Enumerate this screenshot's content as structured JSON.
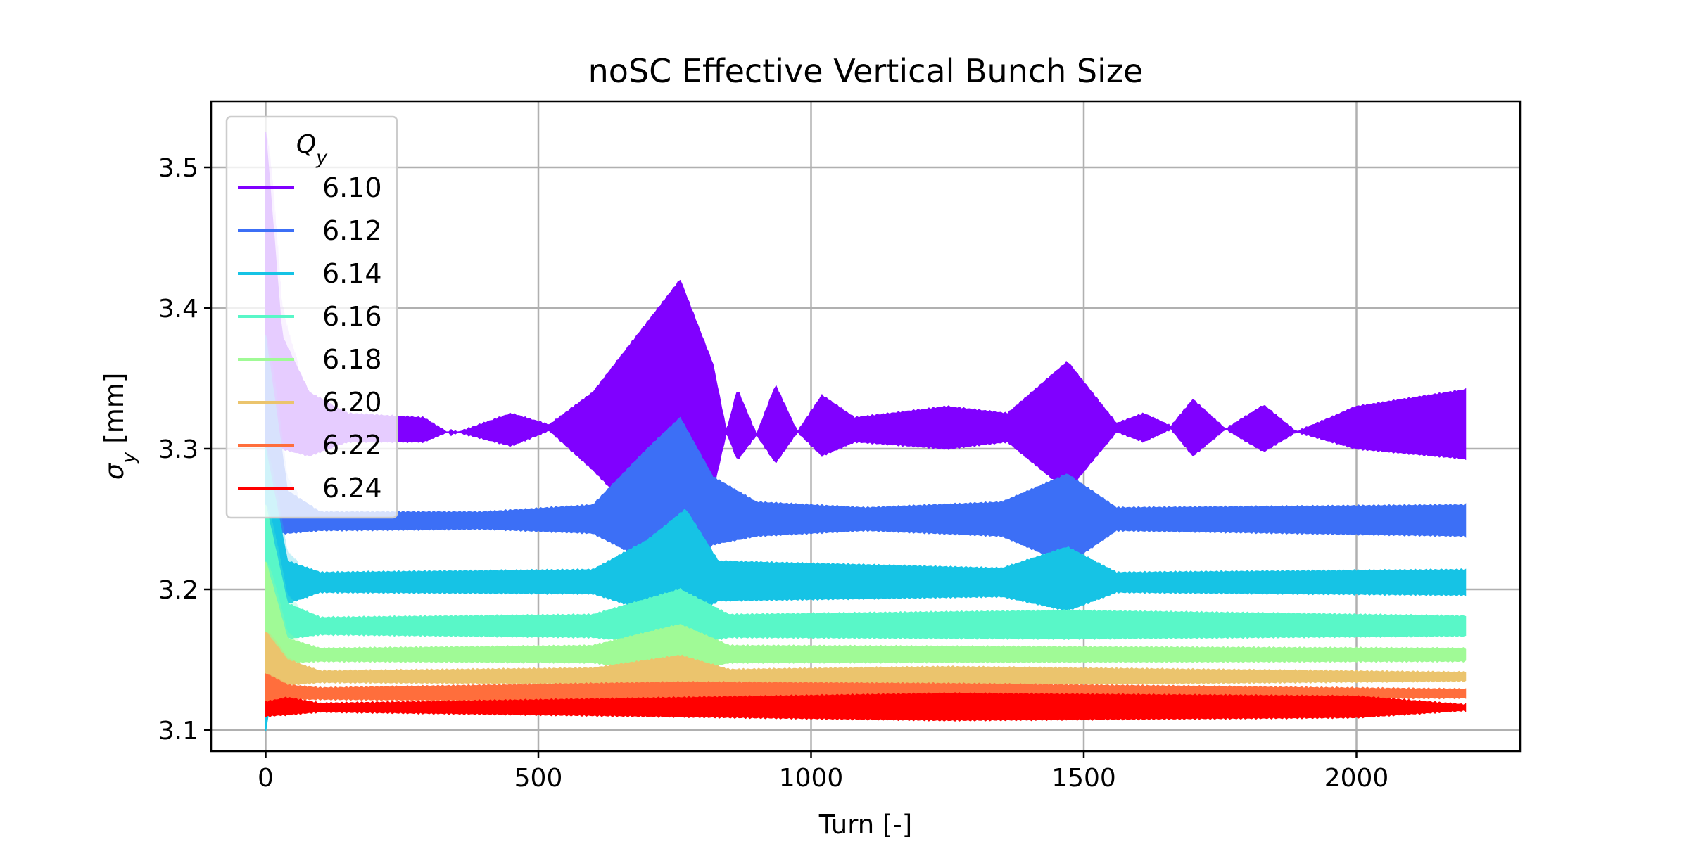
{
  "chart_data": {
    "type": "area",
    "title": "noSC Effective Vertical Bunch Size",
    "xlabel": "Turn [-]",
    "ylabel": "σy [mm]",
    "xlim": [
      -100,
      2300
    ],
    "ylim": [
      3.085,
      3.547
    ],
    "xticks": [
      0,
      500,
      1000,
      1500,
      2000
    ],
    "xtick_labels": [
      "0",
      "500",
      "1000",
      "1500",
      "2000"
    ],
    "yticks": [
      3.1,
      3.2,
      3.3,
      3.4,
      3.5
    ],
    "ytick_labels": [
      "3.1",
      "3.2",
      "3.3",
      "3.4",
      "3.5"
    ],
    "grid": true,
    "legend": {
      "title": "Qy",
      "position": "top-left"
    },
    "turn_range": [
      0,
      2200
    ],
    "series": [
      {
        "name": "6.10",
        "color": "#8000ff",
        "startup_peak": 3.525,
        "envelope": [
          [
            0,
            3.525,
            3.3
          ],
          [
            30,
            3.38,
            3.3
          ],
          [
            80,
            3.34,
            3.295
          ],
          [
            150,
            3.325,
            3.305
          ],
          [
            290,
            3.322,
            3.305
          ],
          [
            340,
            3.31,
            3.313
          ],
          [
            450,
            3.325,
            3.302
          ],
          [
            520,
            3.317,
            3.313
          ],
          [
            600,
            3.34,
            3.285
          ],
          [
            700,
            3.39,
            3.245
          ],
          [
            760,
            3.42,
            3.22
          ],
          [
            820,
            3.36,
            3.27
          ],
          [
            845,
            3.312,
            3.312
          ],
          [
            865,
            3.342,
            3.292
          ],
          [
            900,
            3.31,
            3.31
          ],
          [
            935,
            3.345,
            3.29
          ],
          [
            975,
            3.312,
            3.312
          ],
          [
            1020,
            3.338,
            3.295
          ],
          [
            1080,
            3.322,
            3.305
          ],
          [
            1250,
            3.33,
            3.3
          ],
          [
            1360,
            3.325,
            3.305
          ],
          [
            1470,
            3.362,
            3.27
          ],
          [
            1560,
            3.318,
            3.312
          ],
          [
            1610,
            3.325,
            3.305
          ],
          [
            1660,
            3.316,
            3.314
          ],
          [
            1700,
            3.335,
            3.295
          ],
          [
            1760,
            3.314,
            3.314
          ],
          [
            1830,
            3.331,
            3.298
          ],
          [
            1890,
            3.312,
            3.312
          ],
          [
            2000,
            3.33,
            3.3
          ],
          [
            2200,
            3.342,
            3.293
          ]
        ]
      },
      {
        "name": "6.12",
        "color": "#3c6ff6",
        "startup_peak": 3.38,
        "envelope": [
          [
            0,
            3.38,
            3.24
          ],
          [
            40,
            3.27,
            3.24
          ],
          [
            100,
            3.255,
            3.242
          ],
          [
            400,
            3.255,
            3.243
          ],
          [
            600,
            3.26,
            3.24
          ],
          [
            700,
            3.3,
            3.22
          ],
          [
            760,
            3.322,
            3.21
          ],
          [
            820,
            3.28,
            3.232
          ],
          [
            900,
            3.262,
            3.238
          ],
          [
            1100,
            3.258,
            3.242
          ],
          [
            1350,
            3.262,
            3.238
          ],
          [
            1470,
            3.282,
            3.218
          ],
          [
            1560,
            3.258,
            3.242
          ],
          [
            2200,
            3.26,
            3.238
          ]
        ]
      },
      {
        "name": "6.14",
        "color": "#16c3e5",
        "startup_peak": 3.3,
        "envelope": [
          [
            0,
            3.3,
            3.1
          ],
          [
            40,
            3.22,
            3.19
          ],
          [
            100,
            3.212,
            3.198
          ],
          [
            600,
            3.214,
            3.197
          ],
          [
            700,
            3.235,
            3.185
          ],
          [
            770,
            3.257,
            3.178
          ],
          [
            830,
            3.22,
            3.192
          ],
          [
            1350,
            3.215,
            3.195
          ],
          [
            1470,
            3.23,
            3.185
          ],
          [
            1560,
            3.212,
            3.198
          ],
          [
            2200,
            3.214,
            3.196
          ]
        ]
      },
      {
        "name": "6.16",
        "color": "#59f7c8",
        "startup_peak": 3.26,
        "envelope": [
          [
            0,
            3.26,
            3.12
          ],
          [
            40,
            3.19,
            3.165
          ],
          [
            100,
            3.18,
            3.168
          ],
          [
            600,
            3.182,
            3.166
          ],
          [
            760,
            3.2,
            3.16
          ],
          [
            850,
            3.182,
            3.166
          ],
          [
            1470,
            3.185,
            3.165
          ],
          [
            2200,
            3.181,
            3.167
          ]
        ]
      },
      {
        "name": "6.18",
        "color": "#a0fa96",
        "startup_peak": 3.22,
        "envelope": [
          [
            0,
            3.22,
            3.13
          ],
          [
            40,
            3.165,
            3.148
          ],
          [
            100,
            3.158,
            3.149
          ],
          [
            600,
            3.16,
            3.148
          ],
          [
            760,
            3.175,
            3.14
          ],
          [
            850,
            3.16,
            3.148
          ],
          [
            2200,
            3.158,
            3.149
          ]
        ]
      },
      {
        "name": "6.20",
        "color": "#ebc46d",
        "startup_peak": 3.17,
        "envelope": [
          [
            0,
            3.17,
            3.12
          ],
          [
            40,
            3.15,
            3.132
          ],
          [
            100,
            3.142,
            3.134
          ],
          [
            600,
            3.144,
            3.133
          ],
          [
            760,
            3.153,
            3.128
          ],
          [
            850,
            3.143,
            3.134
          ],
          [
            1250,
            3.145,
            3.132
          ],
          [
            2200,
            3.141,
            3.135
          ]
        ]
      },
      {
        "name": "6.22",
        "color": "#ff6e3c",
        "startup_peak": 3.14,
        "envelope": [
          [
            0,
            3.14,
            3.115
          ],
          [
            40,
            3.132,
            3.122
          ],
          [
            100,
            3.13,
            3.122
          ],
          [
            760,
            3.134,
            3.12
          ],
          [
            1250,
            3.133,
            3.121
          ],
          [
            2200,
            3.129,
            3.123
          ]
        ]
      },
      {
        "name": "6.24",
        "color": "#ff0000",
        "startup_peak": 3.12,
        "envelope": [
          [
            0,
            3.12,
            3.11
          ],
          [
            40,
            3.123,
            3.111
          ],
          [
            100,
            3.119,
            3.113
          ],
          [
            1250,
            3.126,
            3.107
          ],
          [
            2000,
            3.124,
            3.109
          ],
          [
            2200,
            3.118,
            3.114
          ]
        ]
      }
    ]
  }
}
